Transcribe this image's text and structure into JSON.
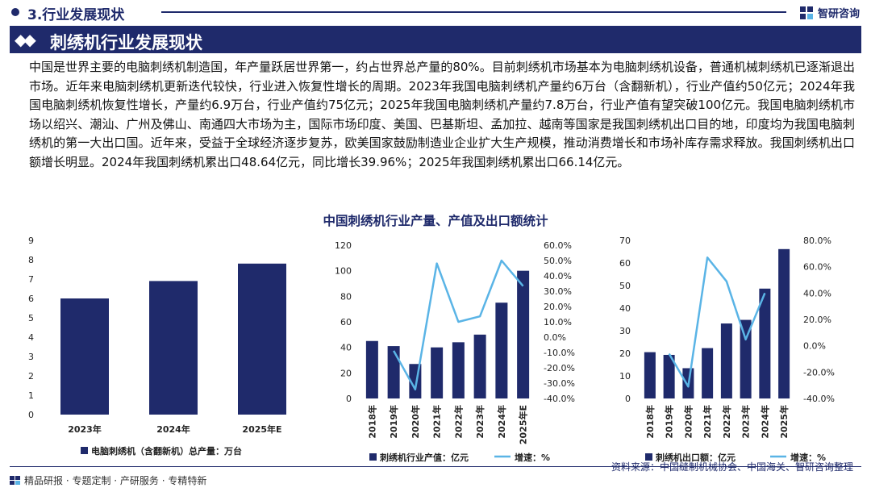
{
  "header": {
    "section_title": "3.行业发展现状",
    "brand": "智研咨询",
    "banner_title": "刺绣机行业发展现状",
    "banner_arrows": "◆◆"
  },
  "intro_text": "中国是世界主要的电脑刺绣机制造国，年产量跃居世界第一，约占世界总产量的80%。目前刺绣机市场基本为电脑刺绣机设备，普通机械刺绣机已逐渐退出市场。近年来电脑刺绣机更新迭代较快，行业进入恢复性增长的周期。2023年我国电脑刺绣机产量约6万台（含翻新机），行业产值约50亿元；2024年我国电脑刺绣机恢复性增长，产量约6.9万台，行业产值约75亿元；2025年我国电脑刺绣机产量约7.8万台，行业产值有望突破100亿元。我国电脑刺绣机市场以绍兴、潮汕、广州及佛山、南通四大市场为主，国际市场印度、美国、巴基斯坦、孟加拉、越南等国家是我国刺绣机出口目的地，印度均为我国电脑刺绣机的第一大出口国。近年来，受益于全球经济逐步复苏，欧美国家鼓励制造业企业扩大生产规模，推动消费增长和市场补库存需求释放。我国刺绣机出口额增长明显。2024年我国刺绣机累出口48.64亿元，同比增长39.96%；2025年我国刺绣机累出口66.14亿元。",
  "chart_section_title": "中国刺绣机行业产量、产值及出口额统计",
  "colors": {
    "navy": "#1f2a6b",
    "bar": "#1f2a6b",
    "line": "#5ab4e6"
  },
  "chart_data": [
    {
      "type": "bar",
      "categories": [
        "2023年",
        "2024年",
        "2025年E"
      ],
      "series": [
        {
          "name": "电脑刺绣机（含翻新机）总产量：万台",
          "values": [
            6,
            6.9,
            7.8
          ]
        }
      ],
      "ylim": [
        0,
        9
      ],
      "yticks": [
        "0",
        "1",
        "2",
        "3",
        "4",
        "5",
        "6",
        "7",
        "8",
        "9"
      ]
    },
    {
      "type": "bar+line",
      "categories": [
        "2018年",
        "2019年",
        "2020年",
        "2021年",
        "2022年",
        "2023年",
        "2024年",
        "2025年E"
      ],
      "series": [
        {
          "name": "刺绣机行业产值：亿元",
          "type": "bar",
          "axis": "left",
          "values": [
            45,
            41,
            27,
            40,
            44,
            50,
            75,
            100
          ]
        },
        {
          "name": "增速：%",
          "type": "line",
          "axis": "right",
          "values": [
            null,
            -8.9,
            -34.1,
            48.1,
            10.0,
            13.6,
            50.0,
            33.3
          ]
        }
      ],
      "ylim_left": [
        0,
        120
      ],
      "ylim_right": [
        -40,
        60
      ],
      "yticks_left": [
        "0",
        "20",
        "40",
        "60",
        "80",
        "100",
        "120"
      ],
      "yticks_right": [
        "-40.0%",
        "-30.0%",
        "-20.0%",
        "-10.0%",
        "0.0%",
        "10.0%",
        "20.0%",
        "30.0%",
        "40.0%",
        "50.0%",
        "60.0%"
      ]
    },
    {
      "type": "bar+line",
      "categories": [
        "2018年",
        "2019年",
        "2020年",
        "2021年",
        "2022年",
        "2023年",
        "2024年",
        "2025年"
      ],
      "series": [
        {
          "name": "刺绣机出口额：亿元",
          "type": "bar",
          "axis": "left",
          "values": [
            20.5,
            19.3,
            13.4,
            22.3,
            33.2,
            34.8,
            48.64,
            66.14
          ]
        },
        {
          "name": "增速：%",
          "type": "line",
          "axis": "right",
          "values": [
            null,
            -6,
            -31,
            67,
            48.9,
            4.8,
            39.96,
            null
          ]
        }
      ],
      "ylim_left": [
        0,
        70
      ],
      "ylim_right": [
        -40,
        80
      ],
      "yticks_left": [
        "0",
        "10",
        "20",
        "30",
        "40",
        "50",
        "60",
        "70"
      ],
      "yticks_right": [
        "-40.0%",
        "-20.0%",
        "0.0%",
        "20.0%",
        "40.0%",
        "60.0%",
        "80.0%"
      ]
    }
  ],
  "footer": {
    "text": "精品研报 · 专题定制 · 产研服务 · 专精特新",
    "source": "资料来源：中国缝制机械协会、中国海关、智研咨询整理"
  }
}
